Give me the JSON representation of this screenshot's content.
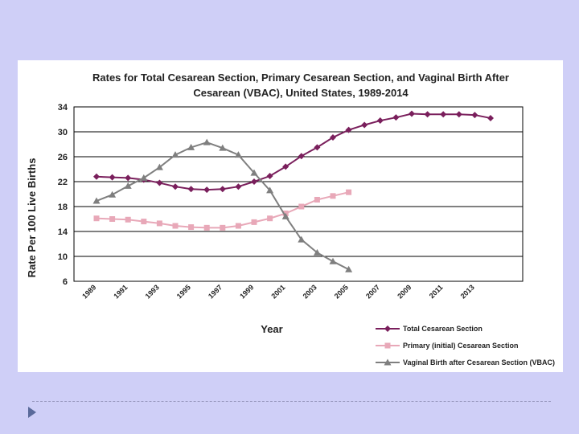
{
  "chart_data": {
    "type": "line",
    "title_lines": [
      "Rates for Total Cesarean Section, Primary Cesarean Section, and Vaginal Birth After",
      "Cesarean (VBAC), United States, 1989-2014"
    ],
    "xlabel": "Year",
    "ylabel": "Rate Per 100 Live Births",
    "ylim": [
      6,
      34
    ],
    "yticks": [
      6,
      10,
      14,
      18,
      22,
      26,
      30,
      34
    ],
    "xlim": [
      1989,
      2014
    ],
    "xticks": [
      1989,
      1991,
      1993,
      1995,
      1997,
      1999,
      2001,
      2003,
      2005,
      2007,
      2009,
      2011,
      2013
    ],
    "grid": "horizontal",
    "legend_position": "bottom-right",
    "series": [
      {
        "name": "Total Cesarean Section",
        "color": "#7a1f5c",
        "marker": "diamond",
        "x": [
          1989,
          1990,
          1991,
          1992,
          1993,
          1994,
          1995,
          1996,
          1997,
          1998,
          1999,
          2000,
          2001,
          2002,
          2003,
          2004,
          2005,
          2006,
          2007,
          2008,
          2009,
          2010,
          2011,
          2012,
          2013,
          2014
        ],
        "y": [
          22.8,
          22.7,
          22.6,
          22.3,
          21.8,
          21.2,
          20.8,
          20.7,
          20.8,
          21.2,
          22.0,
          22.9,
          24.4,
          26.1,
          27.5,
          29.1,
          30.3,
          31.1,
          31.8,
          32.3,
          32.9,
          32.8,
          32.8,
          32.8,
          32.7,
          32.2
        ]
      },
      {
        "name": "Primary (initial) Cesarean Section",
        "color": "#e8a8b8",
        "marker": "square",
        "x": [
          1989,
          1990,
          1991,
          1992,
          1993,
          1994,
          1995,
          1996,
          1997,
          1998,
          1999,
          2000,
          2001,
          2002,
          2003,
          2004,
          2005
        ],
        "y": [
          16.1,
          16.0,
          15.9,
          15.6,
          15.3,
          14.9,
          14.7,
          14.6,
          14.6,
          14.9,
          15.5,
          16.1,
          16.9,
          18.0,
          19.1,
          19.7,
          20.3
        ]
      },
      {
        "name": "Vaginal Birth after Cesarean Section (VBAC)",
        "color": "#7f7f7f",
        "marker": "triangle",
        "x": [
          1989,
          1990,
          1991,
          1992,
          1993,
          1994,
          1995,
          1996,
          1997,
          1998,
          1999,
          2000,
          2001,
          2002,
          2003,
          2004,
          2005
        ],
        "y": [
          18.9,
          19.9,
          21.3,
          22.6,
          24.3,
          26.3,
          27.5,
          28.3,
          27.4,
          26.3,
          23.4,
          20.6,
          16.4,
          12.7,
          10.6,
          9.2,
          7.9
        ]
      }
    ]
  }
}
